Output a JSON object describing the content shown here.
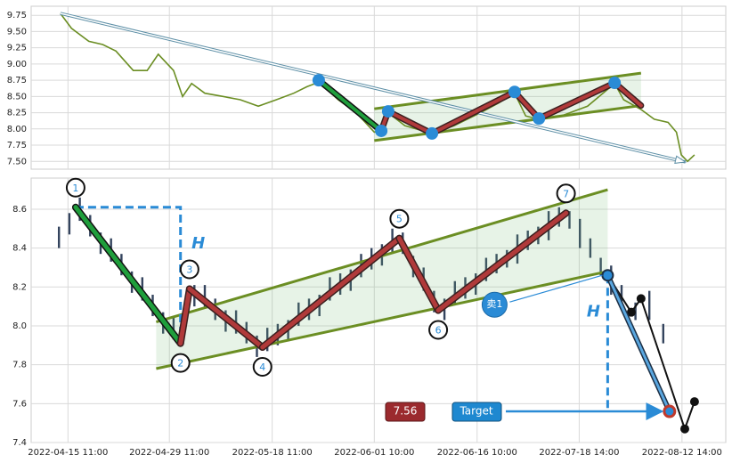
{
  "chart_data": [
    {
      "type": "line",
      "color": "#6b8e23",
      "x": [
        4.2,
        5.8,
        8.3,
        10.3,
        12.2,
        14.7,
        16.7,
        18.3,
        20.5,
        21.8,
        23.1,
        25,
        27.6,
        30.1,
        32.7,
        35.3,
        37.8,
        39.7,
        41.4,
        44.2,
        46.8,
        49.4,
        50.6,
        51.4,
        53.8,
        57.7,
        60.9,
        64.7,
        67.3,
        69.6,
        71.2,
        73.1,
        76.3,
        80.1,
        84,
        85.3,
        87.8,
        89.7,
        91.7,
        92.9,
        93.6,
        94.5,
        95.5
      ],
      "values": [
        9.78,
        9.55,
        9.35,
        9.3,
        9.2,
        8.9,
        8.9,
        9.15,
        8.9,
        8.5,
        8.7,
        8.55,
        8.5,
        8.45,
        8.35,
        8.45,
        8.55,
        8.65,
        8.72,
        8.45,
        8.25,
        7.95,
        8.0,
        8.25,
        8.05,
        7.93,
        8.05,
        8.25,
        8.4,
        8.55,
        8.2,
        8.15,
        8.2,
        8.35,
        8.7,
        8.45,
        8.3,
        8.15,
        8.1,
        7.95,
        7.6,
        7.5,
        7.6
      ],
      "xlim": [
        0,
        100
      ],
      "ylim": [
        7.38,
        9.89
      ],
      "yticks": [
        {
          "value": 7.5,
          "label": "7.50"
        },
        7.75,
        {
          "value": 8,
          "label": "8.00"
        },
        8.25,
        {
          "value": 8.5,
          "label": "8.50"
        },
        8.75,
        {
          "value": 9,
          "label": "9.00"
        },
        9.25,
        {
          "value": 9.5,
          "label": "9.50"
        },
        9.75
      ],
      "grid": true,
      "trend": {
        "x": [
          4.2,
          94.2
        ],
        "values": [
          9.78,
          7.49
        ]
      },
      "channel": {
        "x": [
          49.4,
          87.8
        ],
        "upper": [
          8.31,
          8.86
        ],
        "lower": [
          7.82,
          8.36
        ]
      },
      "pattern": {
        "x": [
          41.4,
          50.4,
          51.4,
          57.7,
          69.6,
          73.1,
          84.0,
          87.8
        ],
        "values": [
          8.75,
          7.97,
          8.27,
          7.93,
          8.57,
          8.16,
          8.71,
          8.36
        ]
      }
    },
    {
      "type": "range",
      "color": "#34445e",
      "x": [
        4,
        5.5,
        7,
        8.5,
        10,
        11.5,
        13,
        14.5,
        16,
        17.5,
        19,
        20.5,
        22,
        23.5,
        25,
        26.5,
        28,
        29.5,
        31,
        32.5,
        34,
        35.5,
        37,
        38.5,
        40,
        41.5,
        43,
        44.5,
        46,
        47.5,
        49,
        50.5,
        52,
        53.5,
        55,
        56.5,
        58,
        59.5,
        61,
        62.5,
        64,
        65.5,
        67,
        68.5,
        70,
        71.5,
        73,
        74.5,
        76,
        77.5,
        79,
        80.5,
        82,
        83.5,
        85,
        87,
        89,
        91
      ],
      "high": [
        8.51,
        8.58,
        8.66,
        8.57,
        8.48,
        8.45,
        8.37,
        8.28,
        8.25,
        8.16,
        8.07,
        8.05,
        8.09,
        8.21,
        8.21,
        8.14,
        8.08,
        8.08,
        8.02,
        7.95,
        7.99,
        8.01,
        8.03,
        8.12,
        8.14,
        8.16,
        8.25,
        8.27,
        8.29,
        8.37,
        8.4,
        8.42,
        8.5,
        8.48,
        8.36,
        8.3,
        8.18,
        8.14,
        8.23,
        8.25,
        8.27,
        8.35,
        8.37,
        8.39,
        8.47,
        8.49,
        8.51,
        8.59,
        8.61,
        8.59,
        8.55,
        8.45,
        8.35,
        8.31,
        8.21,
        8.12,
        8.18,
        8.01
      ],
      "low": [
        8.4,
        8.47,
        8.54,
        8.46,
        8.37,
        8.33,
        8.26,
        8.17,
        8.13,
        8.05,
        7.96,
        7.93,
        7.98,
        8.1,
        8.09,
        8.03,
        7.97,
        7.96,
        7.91,
        7.84,
        7.87,
        7.9,
        7.92,
        8.0,
        8.03,
        8.05,
        8.13,
        8.16,
        8.18,
        8.25,
        8.29,
        8.31,
        8.38,
        8.37,
        8.25,
        8.18,
        8.07,
        8.03,
        8.11,
        8.14,
        8.16,
        8.23,
        8.27,
        8.3,
        8.32,
        8.39,
        8.42,
        8.44,
        8.51,
        8.5,
        8.4,
        8.35,
        8.26,
        8.16,
        8.11,
        8.03,
        8.03,
        7.91
      ],
      "xlim": [
        0,
        100
      ],
      "ylim": [
        7.4,
        8.76
      ],
      "yticks": [
        7.4,
        7.6,
        7.8,
        {
          "value": 8,
          "label": "8.0"
        },
        8.2,
        8.4,
        8.6
      ],
      "xticks": [
        {
          "value": 5.3,
          "label": "2022-04-15 11:00"
        },
        {
          "value": 19.9,
          "label": "2022-04-29 11:00"
        },
        {
          "value": 34.7,
          "label": "2022-05-18 11:00"
        },
        {
          "value": 49.4,
          "label": "2022-06-01 10:00"
        },
        {
          "value": 64.2,
          "label": "2022-06-16 10:00"
        },
        {
          "value": 78.9,
          "label": "2022-07-18 14:00"
        },
        {
          "value": 93.7,
          "label": "2022-08-12 14:00"
        }
      ],
      "grid": true,
      "channel": {
        "x": [
          18,
          83
        ],
        "upper": [
          8.02,
          8.7
        ],
        "lower": [
          7.78,
          8.28
        ]
      },
      "pattern": {
        "x": [
          6.4,
          21.5,
          22.8,
          33.3,
          53,
          58.6,
          77
        ],
        "values": [
          8.61,
          7.91,
          8.19,
          7.89,
          8.45,
          8.08,
          8.58
        ]
      },
      "pattern_labels": [
        "1",
        "2",
        "3",
        "4",
        "5",
        "6",
        "7"
      ],
      "h_label": "H",
      "sell_label": "卖1",
      "breakout": {
        "x": 83,
        "value": 8.26
      },
      "target": {
        "x": 91.9,
        "value": 7.56,
        "label": "7.56",
        "name": "Target"
      },
      "projection": {
        "x": [
          83,
          86.4,
          87.8,
          94.1,
          95.5
        ],
        "values": [
          8.26,
          8.07,
          8.14,
          7.47,
          7.61
        ]
      }
    }
  ]
}
